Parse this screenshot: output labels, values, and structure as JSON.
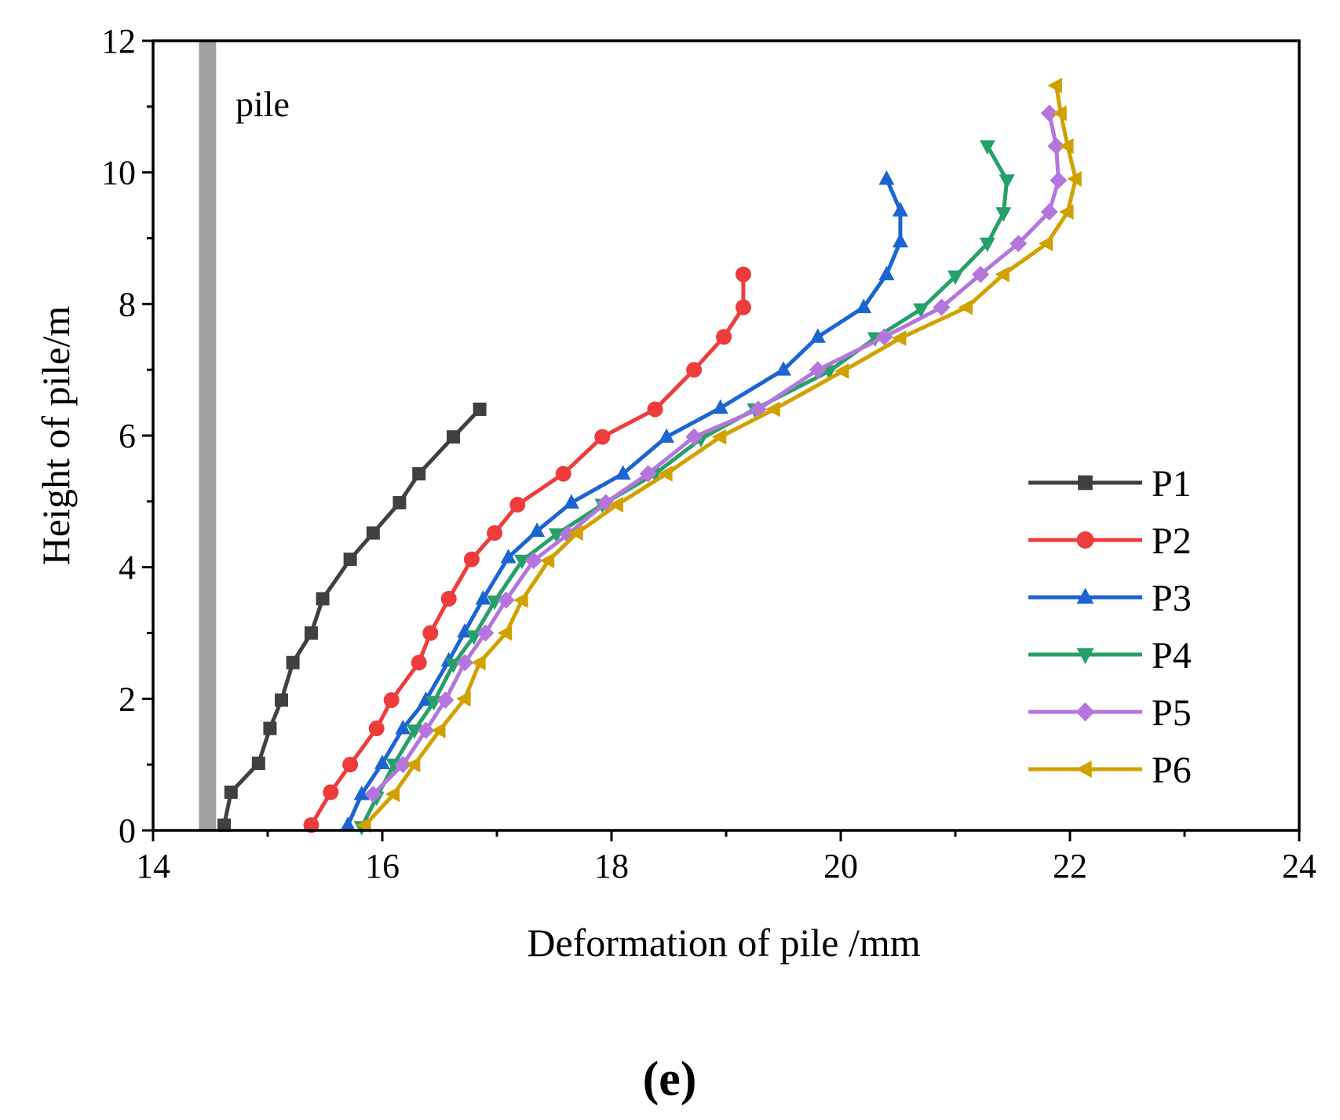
{
  "chart_data": {
    "type": "line",
    "xlabel": "Deformation of pile /mm",
    "ylabel": "Height of pile/m",
    "xlim": [
      14,
      24
    ],
    "ylim": [
      0,
      12
    ],
    "xticks": [
      14,
      16,
      18,
      20,
      22,
      24
    ],
    "yticks": [
      0,
      2,
      4,
      6,
      8,
      10,
      12
    ],
    "grid": false,
    "legend_position": "bottom-right",
    "annotation": "pile",
    "pile_band": [
      14.4,
      14.55
    ],
    "pile_color": "#a0a0a0",
    "panel_label": "(e)",
    "series": [
      {
        "name": "P1",
        "color": "#404040",
        "marker": "square",
        "points": [
          [
            14.62,
            0.08
          ],
          [
            14.68,
            0.58
          ],
          [
            14.92,
            1.02
          ],
          [
            15.02,
            1.55
          ],
          [
            15.12,
            1.98
          ],
          [
            15.22,
            2.55
          ],
          [
            15.38,
            3.0
          ],
          [
            15.48,
            3.52
          ],
          [
            15.72,
            4.12
          ],
          [
            15.92,
            4.52
          ],
          [
            16.15,
            4.98
          ],
          [
            16.32,
            5.42
          ],
          [
            16.62,
            5.98
          ],
          [
            16.85,
            6.4
          ]
        ]
      },
      {
        "name": "P2",
        "color": "#ee3c3c",
        "marker": "circle",
        "points": [
          [
            15.38,
            0.08
          ],
          [
            15.55,
            0.58
          ],
          [
            15.72,
            1.0
          ],
          [
            15.95,
            1.55
          ],
          [
            16.08,
            1.98
          ],
          [
            16.32,
            2.55
          ],
          [
            16.42,
            3.0
          ],
          [
            16.58,
            3.52
          ],
          [
            16.78,
            4.12
          ],
          [
            16.98,
            4.52
          ],
          [
            17.18,
            4.95
          ],
          [
            17.58,
            5.42
          ],
          [
            17.92,
            5.98
          ],
          [
            18.38,
            6.4
          ],
          [
            18.72,
            7.0
          ],
          [
            18.98,
            7.5
          ],
          [
            19.15,
            7.95
          ],
          [
            19.15,
            8.45
          ]
        ]
      },
      {
        "name": "P3",
        "color": "#1c64d2",
        "marker": "triangle-up",
        "points": [
          [
            15.7,
            0.08
          ],
          [
            15.82,
            0.55
          ],
          [
            16.0,
            1.02
          ],
          [
            16.18,
            1.55
          ],
          [
            16.38,
            1.98
          ],
          [
            16.58,
            2.58
          ],
          [
            16.72,
            3.02
          ],
          [
            16.88,
            3.52
          ],
          [
            17.1,
            4.15
          ],
          [
            17.35,
            4.55
          ],
          [
            17.65,
            4.98
          ],
          [
            18.1,
            5.42
          ],
          [
            18.48,
            5.98
          ],
          [
            18.95,
            6.42
          ],
          [
            19.5,
            7.0
          ],
          [
            19.8,
            7.5
          ],
          [
            20.2,
            7.95
          ],
          [
            20.4,
            8.45
          ],
          [
            20.52,
            8.95
          ],
          [
            20.52,
            9.42
          ],
          [
            20.4,
            9.9
          ]
        ]
      },
      {
        "name": "P4",
        "color": "#26a069",
        "marker": "triangle-down",
        "points": [
          [
            15.82,
            0.05
          ],
          [
            15.95,
            0.5
          ],
          [
            16.1,
            1.0
          ],
          [
            16.28,
            1.52
          ],
          [
            16.45,
            1.95
          ],
          [
            16.62,
            2.52
          ],
          [
            16.8,
            2.95
          ],
          [
            16.98,
            3.48
          ],
          [
            17.22,
            4.1
          ],
          [
            17.52,
            4.5
          ],
          [
            17.92,
            4.95
          ],
          [
            18.38,
            5.42
          ],
          [
            18.78,
            5.95
          ],
          [
            19.25,
            6.4
          ],
          [
            19.9,
            6.98
          ],
          [
            20.3,
            7.48
          ],
          [
            20.7,
            7.92
          ],
          [
            21.0,
            8.42
          ],
          [
            21.28,
            8.92
          ],
          [
            21.42,
            9.38
          ],
          [
            21.45,
            9.88
          ],
          [
            21.28,
            10.4
          ]
        ]
      },
      {
        "name": "P5",
        "color": "#b476dc",
        "marker": "diamond",
        "points": [
          [
            15.92,
            0.55
          ],
          [
            16.18,
            1.0
          ],
          [
            16.38,
            1.52
          ],
          [
            16.55,
            1.98
          ],
          [
            16.72,
            2.55
          ],
          [
            16.9,
            3.0
          ],
          [
            17.08,
            3.5
          ],
          [
            17.32,
            4.1
          ],
          [
            17.62,
            4.5
          ],
          [
            17.95,
            4.98
          ],
          [
            18.32,
            5.42
          ],
          [
            18.72,
            5.98
          ],
          [
            19.28,
            6.4
          ],
          [
            19.8,
            7.0
          ],
          [
            20.38,
            7.5
          ],
          [
            20.88,
            7.95
          ],
          [
            21.22,
            8.45
          ],
          [
            21.55,
            8.92
          ],
          [
            21.82,
            9.4
          ],
          [
            21.9,
            9.88
          ],
          [
            21.88,
            10.4
          ],
          [
            21.82,
            10.9
          ]
        ]
      },
      {
        "name": "P6",
        "color": "#d1a100",
        "marker": "triangle-left",
        "points": [
          [
            15.85,
            0.08
          ],
          [
            16.1,
            0.55
          ],
          [
            16.28,
            1.0
          ],
          [
            16.5,
            1.52
          ],
          [
            16.72,
            2.0
          ],
          [
            16.85,
            2.55
          ],
          [
            17.08,
            3.0
          ],
          [
            17.22,
            3.5
          ],
          [
            17.45,
            4.1
          ],
          [
            17.7,
            4.52
          ],
          [
            18.05,
            4.95
          ],
          [
            18.48,
            5.42
          ],
          [
            18.95,
            5.98
          ],
          [
            19.42,
            6.4
          ],
          [
            20.02,
            6.98
          ],
          [
            20.52,
            7.48
          ],
          [
            21.1,
            7.95
          ],
          [
            21.42,
            8.45
          ],
          [
            21.8,
            8.92
          ],
          [
            21.98,
            9.4
          ],
          [
            22.05,
            9.9
          ],
          [
            21.98,
            10.4
          ],
          [
            21.92,
            10.9
          ],
          [
            21.88,
            11.32
          ]
        ]
      }
    ]
  }
}
